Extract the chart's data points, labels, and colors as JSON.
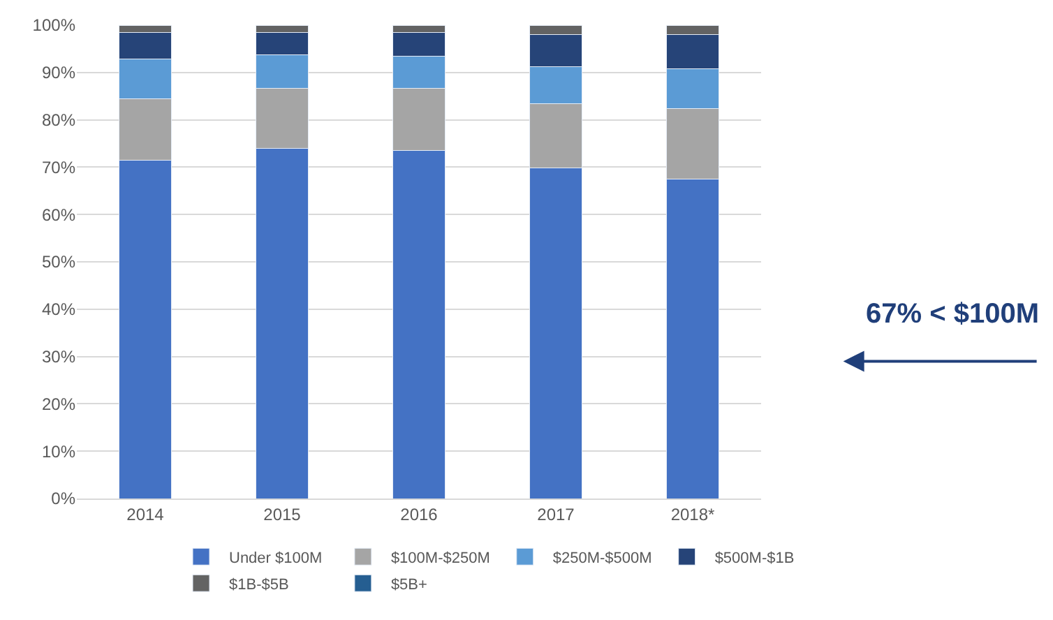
{
  "chart_data": {
    "type": "bar",
    "stacked": true,
    "categories": [
      "2014",
      "2015",
      "2016",
      "2017",
      "2018*"
    ],
    "series": [
      {
        "name": "Under $100M",
        "color": "#4472c4",
        "values": [
          71.5,
          74,
          73.5,
          69.8,
          67.5
        ]
      },
      {
        "name": "$100M-$250M",
        "color": "#a5a5a5",
        "values": [
          13,
          12.6,
          13.1,
          13.6,
          14.9
        ]
      },
      {
        "name": "$250M-$500M",
        "color": "#5b9bd5",
        "values": [
          8.4,
          7.2,
          6.8,
          7.8,
          8.4
        ]
      },
      {
        "name": "$500M-$1B",
        "color": "#264478",
        "values": [
          5.5,
          4.6,
          5,
          6.8,
          7.2
        ]
      },
      {
        "name": "$1B-$5B",
        "color": "#636363",
        "values": [
          1.6,
          1.6,
          1.6,
          2,
          2
        ]
      },
      {
        "name": "$5B+",
        "color": "#255e91",
        "values": [
          null,
          null,
          null,
          null,
          null
        ]
      }
    ],
    "ylim": [
      0,
      100
    ],
    "yticks": [
      {
        "value": 0,
        "label": "0%"
      },
      {
        "value": 10,
        "label": "10%"
      },
      {
        "value": 20,
        "label": "20%"
      },
      {
        "value": 30,
        "label": "30%"
      },
      {
        "value": 40,
        "label": "40%"
      },
      {
        "value": 50,
        "label": "50%"
      },
      {
        "value": 60,
        "label": "60%"
      },
      {
        "value": 70,
        "label": "70%"
      },
      {
        "value": 80,
        "label": "80%"
      },
      {
        "value": 90,
        "label": "90%"
      },
      {
        "value": 100,
        "label": "100%"
      }
    ],
    "grid": "y",
    "legend": "bottom",
    "annotations": [
      "67% < $100M"
    ]
  }
}
